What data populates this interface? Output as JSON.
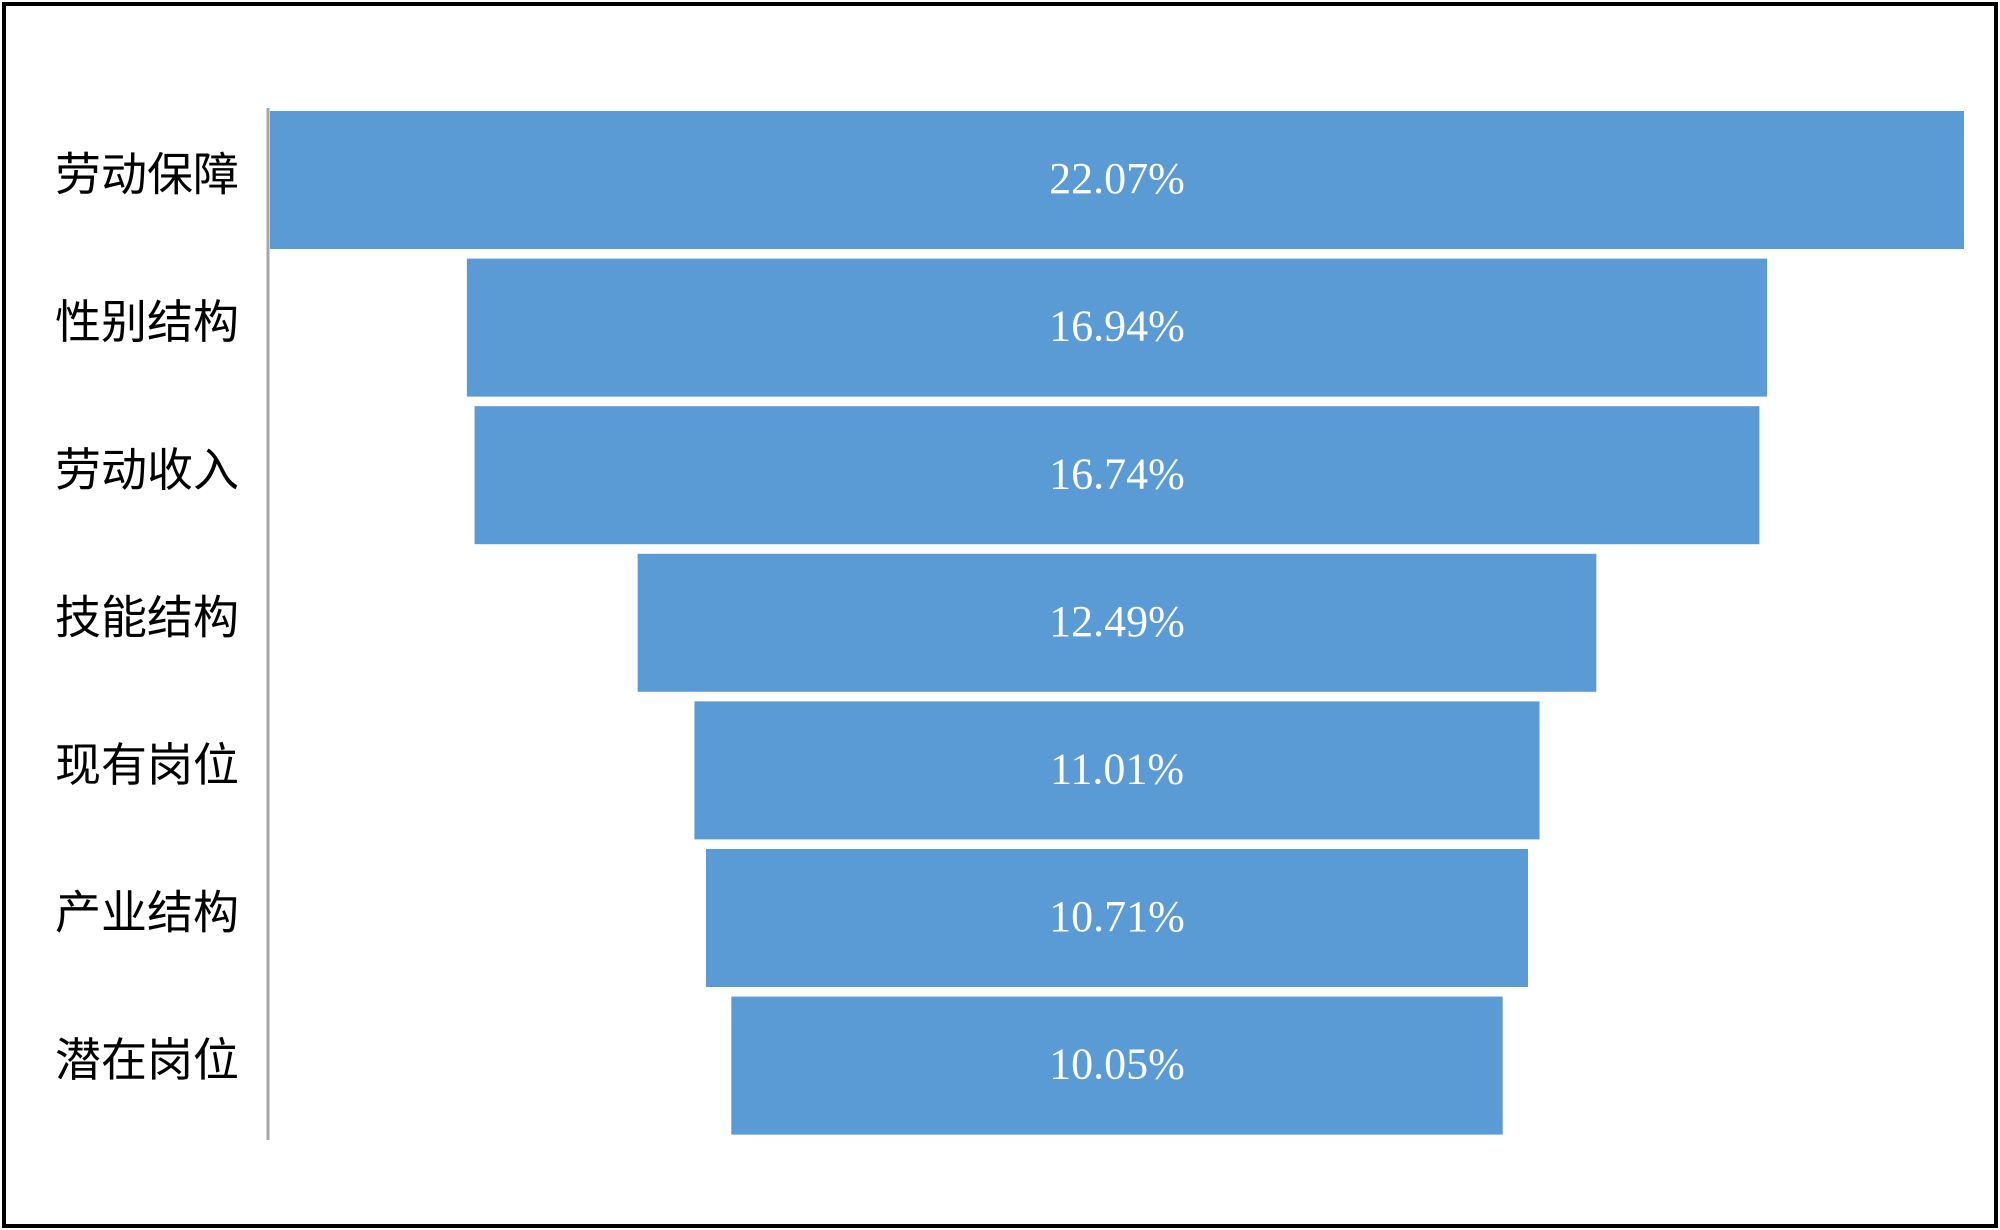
{
  "chart_data": {
    "type": "funnel",
    "categories": [
      "劳动保障",
      "性别结构",
      "劳动收入",
      "技能结构",
      "现有岗位",
      "产业结构",
      "潜在岗位"
    ],
    "values": [
      22.07,
      16.94,
      16.74,
      12.49,
      11.01,
      10.71,
      10.05
    ],
    "value_labels": [
      "22.07%",
      "16.94%",
      "16.74%",
      "12.49%",
      "11.01%",
      "10.71%",
      "10.05%"
    ],
    "color": "#5b9bd5"
  }
}
